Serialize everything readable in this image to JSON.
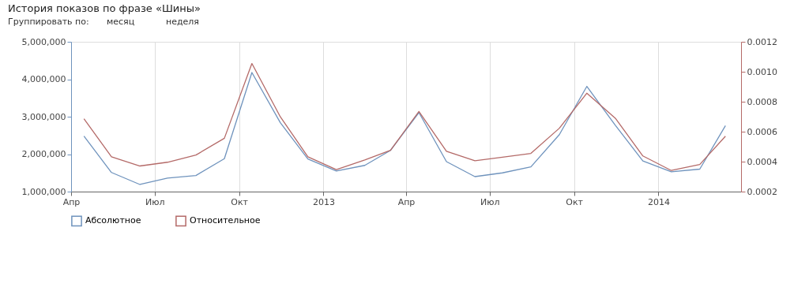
{
  "chart_data": {
    "type": "line",
    "title": "История показов по фразе «Шины»",
    "annotations": [
      "Группировать по:",
      "месяц",
      "неделя"
    ],
    "x": [
      "2012-04-15",
      "2012-05-15",
      "2012-06-15",
      "2012-07-15",
      "2012-08-15",
      "2012-09-15",
      "2012-10-15",
      "2012-11-15",
      "2012-12-15",
      "2013-01-15",
      "2013-02-15",
      "2013-03-15",
      "2013-04-15",
      "2013-05-15",
      "2013-06-15",
      "2013-07-15",
      "2013-08-15",
      "2013-09-15",
      "2013-10-15",
      "2013-11-15",
      "2013-12-15",
      "2014-01-15",
      "2014-02-15",
      "2014-03-15"
    ],
    "series": [
      {
        "name": "Абсолютное",
        "color": "#6f93bd",
        "values": [
          2480000,
          1510000,
          1190000,
          1360000,
          1430000,
          1880000,
          4180000,
          2840000,
          1870000,
          1550000,
          1700000,
          2100000,
          3110000,
          1800000,
          1400000,
          1500000,
          1660000,
          2520000,
          3810000,
          2770000,
          1820000,
          1530000,
          1600000,
          2760000
        ]
      },
      {
        "name": "Относительное",
        "color": "#b46a68",
        "axis": "y2",
        "values": [
          0.000686,
          0.000432,
          0.000371,
          0.000396,
          0.000444,
          0.000556,
          0.001055,
          0.000699,
          0.000432,
          0.000347,
          0.000411,
          0.000476,
          0.000735,
          0.000469,
          0.000406,
          0.00043,
          0.000455,
          0.000623,
          0.000857,
          0.00069,
          0.000438,
          0.000341,
          0.000381,
          0.00057
        ]
      }
    ],
    "xlim": [
      "2012-04-01",
      "2014-04-01"
    ],
    "xticks": [
      {
        "value": "2012-04-01",
        "label": "Апр"
      },
      {
        "value": "2012-07-01",
        "label": "Июл"
      },
      {
        "value": "2012-10-01",
        "label": "Окт"
      },
      {
        "value": "2013-01-01",
        "label": "2013"
      },
      {
        "value": "2013-04-01",
        "label": "Апр"
      },
      {
        "value": "2013-07-01",
        "label": "Июл"
      },
      {
        "value": "2013-10-01",
        "label": "Окт"
      },
      {
        "value": "2014-01-01",
        "label": "2014"
      }
    ],
    "ylim": [
      1000000,
      5000000
    ],
    "yticks": [
      {
        "value": 1000000,
        "label": "1,000,000"
      },
      {
        "value": 2000000,
        "label": "2,000,000"
      },
      {
        "value": 3000000,
        "label": "3,000,000"
      },
      {
        "value": 4000000,
        "label": "4,000,000"
      },
      {
        "value": 5000000,
        "label": "5,000,000"
      }
    ],
    "y2lim": [
      0.0002,
      0.0012
    ],
    "y2ticks": [
      {
        "value": 0.0002,
        "label": "0.0002"
      },
      {
        "value": 0.0004,
        "label": "0.0004"
      },
      {
        "value": 0.0006,
        "label": "0.0006"
      },
      {
        "value": 0.0008,
        "label": "0.0008"
      },
      {
        "value": 0.001,
        "label": "0.0010"
      },
      {
        "value": 0.0012,
        "label": "0.0012"
      }
    ],
    "grid": "x",
    "legend": "bottom left",
    "marker": "none",
    "line_style": "solid"
  }
}
